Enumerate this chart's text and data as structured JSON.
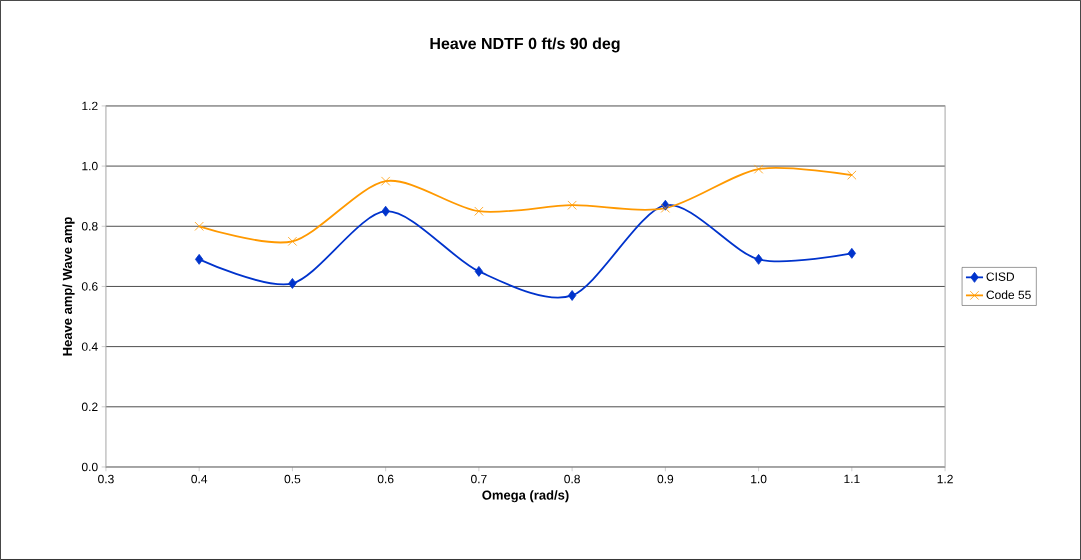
{
  "chart_data": {
    "type": "line",
    "title": "Heave NDTF 0 ft/s 90 deg",
    "xlabel": "Omega (rad/s)",
    "ylabel": "Heave amp/ Wave amp",
    "x": [
      0.4,
      0.5,
      0.6,
      0.7,
      0.8,
      0.9,
      1.0,
      1.1
    ],
    "series": [
      {
        "name": "CISD",
        "color": "#0033cc",
        "marker": "diamond",
        "values": [
          0.69,
          0.61,
          0.85,
          0.65,
          0.57,
          0.87,
          0.69,
          0.71
        ]
      },
      {
        "name": "Code 55",
        "color": "#ff9900",
        "marker": "cross",
        "values": [
          0.8,
          0.75,
          0.95,
          0.85,
          0.87,
          0.86,
          0.99,
          0.97
        ]
      }
    ],
    "xlim": [
      0.3,
      1.2
    ],
    "xticks": [
      {
        "value": 0.3,
        "label": "0.3"
      },
      {
        "value": 0.4,
        "label": "0.4"
      },
      {
        "value": 0.5,
        "label": "0.5"
      },
      {
        "value": 0.6,
        "label": "0.6"
      },
      {
        "value": 0.7,
        "label": "0.7"
      },
      {
        "value": 0.8,
        "label": "0.8"
      },
      {
        "value": 0.9,
        "label": "0.9"
      },
      {
        "value": 1.0,
        "label": "1.0"
      },
      {
        "value": 1.1,
        "label": "1.1"
      },
      {
        "value": 1.2,
        "label": "1.2"
      }
    ],
    "ylim": [
      0,
      1.2
    ],
    "yticks": [
      {
        "value": 0,
        "label": "0.0"
      },
      {
        "value": 0.2,
        "label": "0.2"
      },
      {
        "value": 0.4,
        "label": "0.4"
      },
      {
        "value": 0.6,
        "label": "0.6"
      },
      {
        "value": 0.8,
        "label": "0.8"
      },
      {
        "value": 1.0,
        "label": "1.0"
      },
      {
        "value": 1.2,
        "label": "1.2"
      }
    ],
    "grid": "y",
    "legend": "right",
    "line_style": "solid"
  }
}
